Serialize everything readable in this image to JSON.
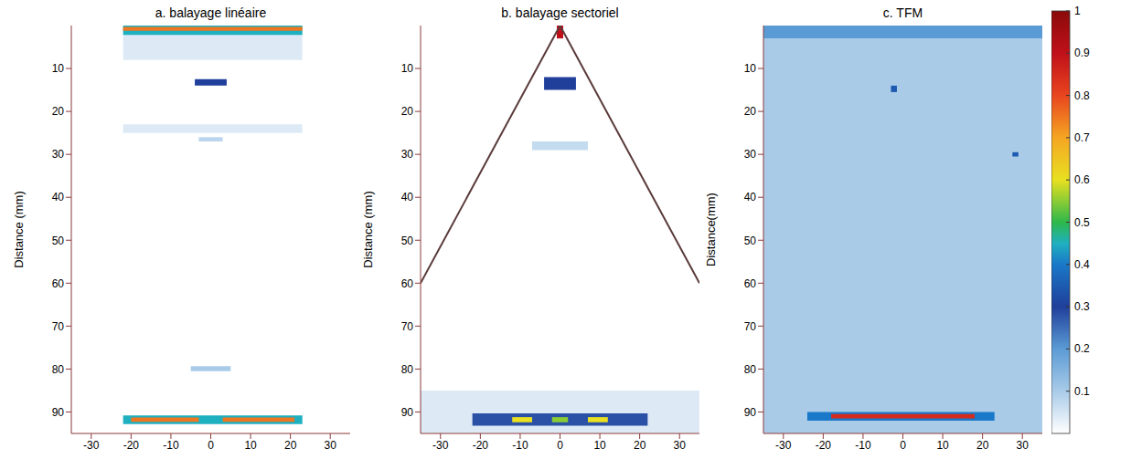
{
  "chart_data": [
    {
      "type": "heatmap",
      "title": "a. balayage linéaire",
      "ylabel": "Distance (mm)",
      "xlim": [
        -35,
        35
      ],
      "xticks": [
        -30,
        -20,
        -10,
        0,
        10,
        20,
        30
      ],
      "ylim": [
        0,
        95
      ],
      "yticks": [
        10,
        20,
        30,
        40,
        50,
        60,
        70,
        80,
        90
      ],
      "echoes": [
        {
          "x": [
            -22,
            23
          ],
          "y": [
            2,
            8
          ],
          "amplitude": 0.04
        },
        {
          "x": [
            -22,
            23
          ],
          "y": [
            0,
            2.2
          ],
          "amplitude": 0.45
        },
        {
          "x": [
            -22,
            23
          ],
          "y": [
            0.3,
            1.2
          ],
          "amplitude": 0.75
        },
        {
          "x": [
            -4,
            4
          ],
          "y": [
            12.5,
            14
          ],
          "amplitude": 0.3
        },
        {
          "x": [
            -22,
            23
          ],
          "y": [
            23,
            25
          ],
          "amplitude": 0.04
        },
        {
          "x": [
            -3,
            3
          ],
          "y": [
            26,
            27
          ],
          "amplitude": 0.08
        },
        {
          "x": [
            -5,
            5
          ],
          "y": [
            79.3,
            80.5
          ],
          "amplitude": 0.1
        },
        {
          "x": [
            -22,
            23
          ],
          "y": [
            90.8,
            92.8
          ],
          "amplitude": 0.45
        },
        {
          "x": [
            -20,
            -3
          ],
          "y": [
            91.3,
            92.3
          ],
          "amplitude": 0.75
        },
        {
          "x": [
            3,
            21
          ],
          "y": [
            91.3,
            92.3
          ],
          "amplitude": 0.75
        }
      ]
    },
    {
      "type": "heatmap",
      "title": "b. balayage sectoriel",
      "ylabel": "Distance (mm)",
      "xlim": [
        -35,
        35
      ],
      "xticks": [
        -30,
        -20,
        -10,
        0,
        10,
        20,
        30
      ],
      "ylim": [
        0,
        95
      ],
      "yticks": [
        10,
        20,
        30,
        40,
        50,
        60,
        70,
        80,
        90
      ],
      "sector_edges": [
        [
          [
            0,
            0
          ],
          [
            -35,
            60
          ]
        ],
        [
          [
            0,
            0
          ],
          [
            35,
            60
          ]
        ]
      ],
      "echoes": [
        {
          "x": [
            -0.8,
            0.8
          ],
          "y": [
            0,
            3
          ],
          "amplitude": 0.9
        },
        {
          "x": [
            -4,
            4
          ],
          "y": [
            12,
            15
          ],
          "amplitude": 0.3
        },
        {
          "x": [
            -7,
            7
          ],
          "y": [
            27,
            29
          ],
          "amplitude": 0.07
        },
        {
          "x": [
            -35,
            35
          ],
          "y": [
            85,
            95
          ],
          "amplitude": 0.04
        },
        {
          "x": [
            -22,
            22
          ],
          "y": [
            90.3,
            93.2
          ],
          "amplitude": 0.28
        },
        {
          "x": [
            -12,
            -7
          ],
          "y": [
            91.2,
            92.4
          ],
          "amplitude": 0.6
        },
        {
          "x": [
            -2,
            2
          ],
          "y": [
            91.2,
            92.4
          ],
          "amplitude": 0.55
        },
        {
          "x": [
            7,
            12
          ],
          "y": [
            91.2,
            92.4
          ],
          "amplitude": 0.6
        }
      ]
    },
    {
      "type": "heatmap",
      "title": "c. TFM",
      "ylabel": "Distance(mm)",
      "xlim": [
        -35,
        35
      ],
      "xticks": [
        -30,
        -20,
        -10,
        0,
        10,
        20,
        30
      ],
      "ylim": [
        0,
        95
      ],
      "yticks": [
        10,
        20,
        30,
        40,
        50,
        60,
        70,
        80,
        90
      ],
      "echoes": [
        {
          "x": [
            -35,
            35
          ],
          "y": [
            0,
            95
          ],
          "amplitude": 0.1
        },
        {
          "x": [
            -35,
            35
          ],
          "y": [
            0,
            3
          ],
          "amplitude": 0.2
        },
        {
          "x": [
            -3,
            -1.5
          ],
          "y": [
            14,
            15.5
          ],
          "amplitude": 0.35
        },
        {
          "x": [
            27.5,
            29
          ],
          "y": [
            29.5,
            30.5
          ],
          "amplitude": 0.35
        },
        {
          "x": [
            -24,
            23
          ],
          "y": [
            90,
            92
          ],
          "amplitude": 0.4
        },
        {
          "x": [
            -18,
            18
          ],
          "y": [
            90.5,
            91.5
          ],
          "amplitude": 0.85
        }
      ],
      "colorbar": {
        "range": [
          0,
          1
        ],
        "ticks": [
          0.1,
          0.2,
          0.3,
          0.4,
          0.5,
          0.6,
          0.7,
          0.8,
          0.9,
          1
        ]
      }
    }
  ]
}
